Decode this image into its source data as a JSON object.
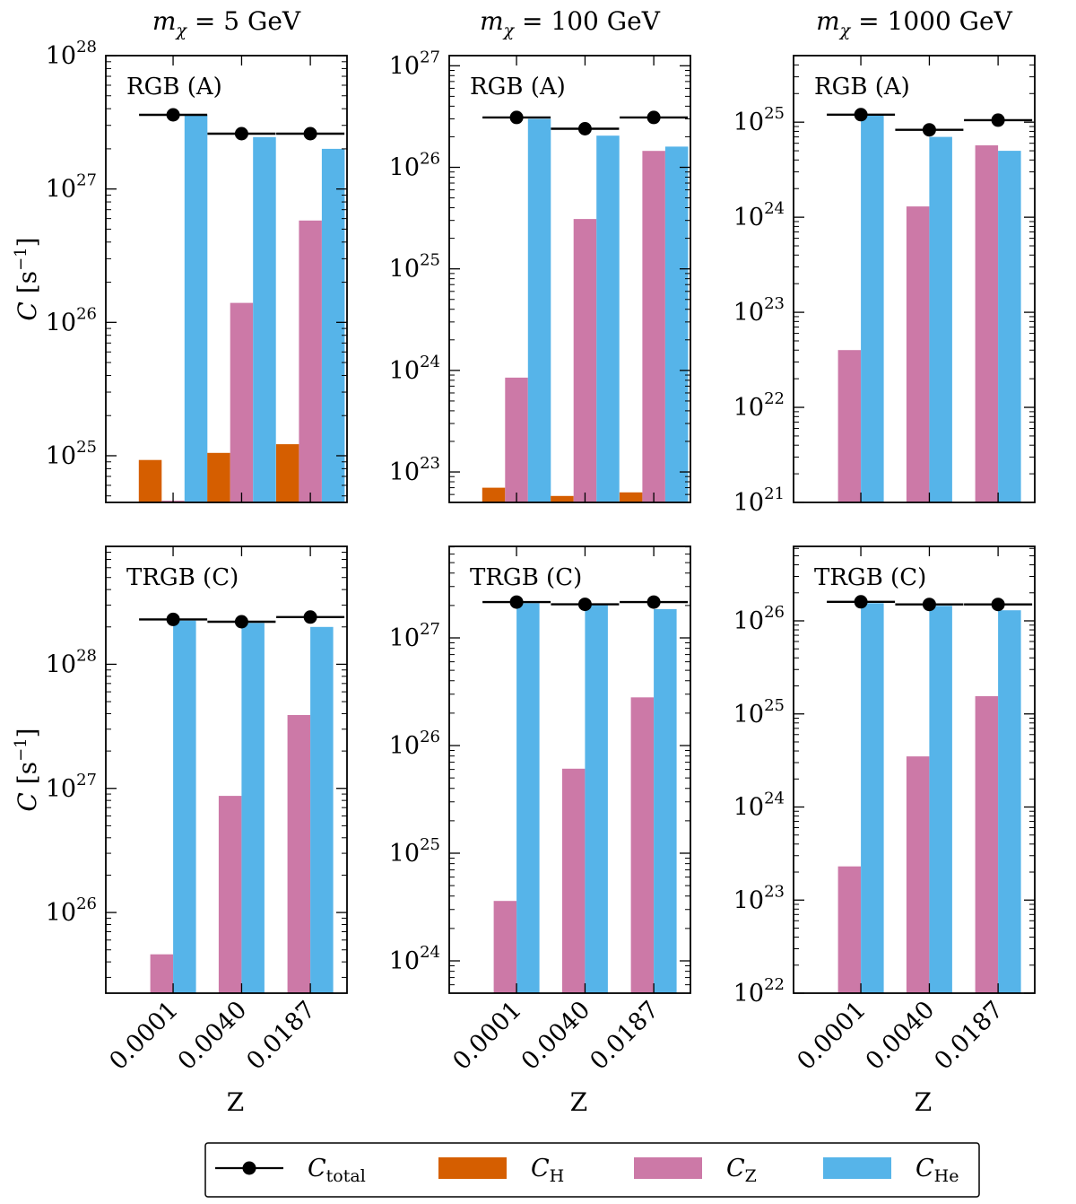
{
  "colors": {
    "total": "#000000",
    "H": "#d55e00",
    "Z": "#cc79a7",
    "He": "#56b4e9"
  },
  "shared": {
    "xlabel": "Z",
    "ylabel_main": "C",
    "ylabel_unit": "[s",
    "ylabel_exp": "−1",
    "ylabel_close": "]",
    "tick_base": "10",
    "column_titles": [
      {
        "pre": "m",
        "sub": "χ",
        "post": " = 5 GeV"
      },
      {
        "pre": "m",
        "sub": "χ",
        "post": " = 100 GeV"
      },
      {
        "pre": "m",
        "sub": "χ",
        "post": " = 1000 GeV"
      }
    ]
  },
  "legend": {
    "items": [
      {
        "key": "total",
        "main": "C",
        "sub": "total"
      },
      {
        "key": "H",
        "main": "C",
        "sub": "H"
      },
      {
        "key": "Z",
        "main": "C",
        "sub": "Z"
      },
      {
        "key": "He",
        "main": "C",
        "sub": "He"
      }
    ]
  },
  "chart_data": [
    {
      "type": "bar",
      "panel_label": "RGB (A)",
      "mass_GeV": 5,
      "categories": [
        "0.0001",
        "0.0040",
        "0.0187"
      ],
      "ylim_log10": [
        24.65,
        28.0
      ],
      "major_ticks": [
        25,
        26,
        27,
        28
      ],
      "series": [
        {
          "name": "C_total",
          "kind": "marker",
          "values": [
            3.6e+27,
            2.6e+27,
            2.6e+27
          ]
        },
        {
          "name": "C_H",
          "values": [
            9.3e+24,
            1.05e+25,
            1.22e+25
          ]
        },
        {
          "name": "C_Z",
          "values": [
            4.6e+24,
            1.4e+26,
            5.8e+26
          ]
        },
        {
          "name": "C_He",
          "values": [
            3.6e+27,
            2.45e+27,
            2e+27
          ]
        }
      ]
    },
    {
      "type": "bar",
      "panel_label": "RGB (A)",
      "mass_GeV": 100,
      "categories": [
        "0.0001",
        "0.0040",
        "0.0187"
      ],
      "ylim_log10": [
        22.7,
        27.1
      ],
      "major_ticks": [
        23,
        24,
        25,
        26,
        27
      ],
      "series": [
        {
          "name": "C_total",
          "kind": "marker",
          "values": [
            3.1e+26,
            2.4e+26,
            3.1e+26
          ]
        },
        {
          "name": "C_H",
          "values": [
            7e+22,
            5.8e+22,
            6.3e+22
          ]
        },
        {
          "name": "C_Z",
          "values": [
            8.5e+23,
            3.1e+25,
            1.45e+26
          ]
        },
        {
          "name": "C_He",
          "values": [
            3e+26,
            2.05e+26,
            1.6e+26
          ]
        }
      ]
    },
    {
      "type": "bar",
      "panel_label": "RGB (A)",
      "mass_GeV": 1000,
      "categories": [
        "0.0001",
        "0.0040",
        "0.0187"
      ],
      "ylim_log10": [
        21.0,
        25.7
      ],
      "major_ticks": [
        21,
        22,
        23,
        24,
        25
      ],
      "series": [
        {
          "name": "C_total",
          "kind": "marker",
          "values": [
            1.2e+25,
            8.3e+24,
            1.05e+25
          ]
        },
        {
          "name": "C_Z",
          "values": [
            4e+22,
            1.3e+24,
            5.7e+24
          ]
        },
        {
          "name": "C_He",
          "values": [
            1.2e+25,
            7e+24,
            5e+24
          ]
        }
      ]
    },
    {
      "type": "bar",
      "panel_label": "TRGB (C)",
      "mass_GeV": 5,
      "categories": [
        "0.0001",
        "0.0040",
        "0.0187"
      ],
      "ylim_log10": [
        25.35,
        28.95
      ],
      "major_ticks": [
        26,
        27,
        28
      ],
      "series": [
        {
          "name": "C_total",
          "kind": "marker",
          "values": [
            2.3e+28,
            2.2e+28,
            2.4e+28
          ]
        },
        {
          "name": "C_Z",
          "values": [
            4.6e+25,
            8.7e+26,
            3.9e+27
          ]
        },
        {
          "name": "C_He",
          "values": [
            2.25e+28,
            2.15e+28,
            2e+28
          ]
        }
      ]
    },
    {
      "type": "bar",
      "panel_label": "TRGB (C)",
      "mass_GeV": 100,
      "categories": [
        "0.0001",
        "0.0040",
        "0.0187"
      ],
      "ylim_log10": [
        23.7,
        27.85
      ],
      "major_ticks": [
        24,
        25,
        26,
        27
      ],
      "series": [
        {
          "name": "C_total",
          "kind": "marker",
          "values": [
            2.15e+27,
            2.05e+27,
            2.15e+27
          ]
        },
        {
          "name": "C_Z",
          "values": [
            3.6e+24,
            6.1e+25,
            2.8e+26
          ]
        },
        {
          "name": "C_He",
          "values": [
            2.1e+27,
            2.05e+27,
            1.85e+27
          ]
        }
      ]
    },
    {
      "type": "bar",
      "panel_label": "TRGB (C)",
      "mass_GeV": 1000,
      "categories": [
        "0.0001",
        "0.0040",
        "0.0187"
      ],
      "ylim_log10": [
        22.0,
        26.8
      ],
      "major_ticks": [
        22,
        23,
        24,
        25,
        26
      ],
      "series": [
        {
          "name": "C_total",
          "kind": "marker",
          "values": [
            1.6e+26,
            1.5e+26,
            1.5e+26
          ]
        },
        {
          "name": "C_Z",
          "values": [
            2.3e+23,
            3.5e+24,
            1.55e+25
          ]
        },
        {
          "name": "C_He",
          "values": [
            1.55e+26,
            1.45e+26,
            1.3e+26
          ]
        }
      ]
    }
  ]
}
